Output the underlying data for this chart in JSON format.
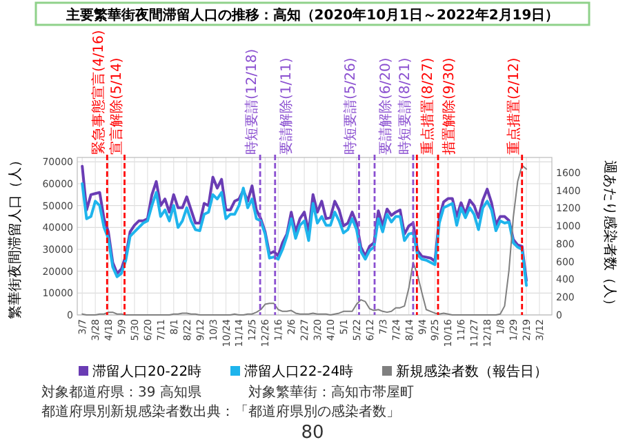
{
  "chart_data": {
    "type": "line",
    "title": "主要繁華街夜間滞留人口の推移：高知（2020年10月1日～2022年2月19日）",
    "ylabel": "繁華街夜間滞留人口（人）",
    "y2label": "週あたり感染者数（人）",
    "x": [
      "2020-03-07",
      "2020-03-14",
      "2020-03-21",
      "2020-03-28",
      "2020-04-04",
      "2020-04-11",
      "2020-04-18",
      "2020-04-25",
      "2020-05-02",
      "2020-05-09",
      "2020-05-16",
      "2020-05-23",
      "2020-05-30",
      "2020-06-06",
      "2020-06-13",
      "2020-06-20",
      "2020-06-27",
      "2020-07-04",
      "2020-07-11",
      "2020-07-18",
      "2020-07-25",
      "2020-08-01",
      "2020-08-08",
      "2020-08-15",
      "2020-08-22",
      "2020-08-29",
      "2020-09-05",
      "2020-09-12",
      "2020-09-19",
      "2020-09-26",
      "2020-10-03",
      "2020-10-10",
      "2020-10-17",
      "2020-10-24",
      "2020-10-31",
      "2020-11-07",
      "2020-11-14",
      "2020-11-21",
      "2020-11-28",
      "2020-12-05",
      "2020-12-12",
      "2020-12-19",
      "2020-12-26",
      "2021-01-02",
      "2021-01-09",
      "2021-01-16",
      "2021-01-23",
      "2021-01-30",
      "2021-02-06",
      "2021-02-13",
      "2021-02-20",
      "2021-02-27",
      "2021-03-06",
      "2021-03-13",
      "2021-03-20",
      "2021-03-27",
      "2021-04-03",
      "2021-04-10",
      "2021-04-17",
      "2021-04-24",
      "2021-05-01",
      "2021-05-08",
      "2021-05-15",
      "2021-05-22",
      "2021-05-29",
      "2021-06-05",
      "2021-06-12",
      "2021-06-19",
      "2021-06-26",
      "2021-07-03",
      "2021-07-10",
      "2021-07-17",
      "2021-07-24",
      "2021-07-31",
      "2021-08-07",
      "2021-08-14",
      "2021-08-21",
      "2021-08-28",
      "2021-09-04",
      "2021-09-11",
      "2021-09-18",
      "2021-09-25",
      "2021-10-02",
      "2021-10-09",
      "2021-10-16",
      "2021-10-23",
      "2021-10-30",
      "2021-11-06",
      "2021-11-13",
      "2021-11-20",
      "2021-11-27",
      "2021-12-04",
      "2021-12-11",
      "2021-12-18",
      "2021-12-25",
      "2022-01-01",
      "2022-01-08",
      "2022-01-15",
      "2022-01-22",
      "2022-01-29",
      "2022-02-05",
      "2022-02-12",
      "2022-02-19"
    ],
    "series": [
      {
        "name": "滞留人口20-22時",
        "color": "#6a3cb4",
        "values": [
          68000,
          48000,
          55000,
          55500,
          56000,
          44000,
          38000,
          24000,
          19000,
          21000,
          27000,
          38000,
          41000,
          43000,
          43000,
          44000,
          55000,
          61000,
          50000,
          53000,
          47000,
          55000,
          49000,
          49000,
          54000,
          48000,
          42000,
          42000,
          51000,
          50000,
          63000,
          58000,
          62000,
          48000,
          48000,
          52000,
          53000,
          57000,
          52000,
          59000,
          48000,
          44000,
          38000,
          28000,
          29000,
          27000,
          33000,
          37000,
          47000,
          38000,
          44000,
          47000,
          38000,
          55000,
          47000,
          52000,
          44000,
          44500,
          52000,
          48000,
          40700,
          42000,
          47000,
          42000,
          31000,
          27000,
          31400,
          33000,
          47600,
          40700,
          48400,
          45500,
          47000,
          48000,
          37000,
          40700,
          42000,
          29500,
          26800,
          26400,
          26000,
          24500,
          44500,
          51700,
          53200,
          53200,
          45000,
          51300,
          46300,
          52500,
          50000,
          44500,
          52500,
          57500,
          51300,
          41300,
          45000,
          45000,
          43200,
          34500,
          32000,
          31400,
          15800
        ]
      },
      {
        "name": "滞留人口22-24時",
        "color": "#1eb4ec",
        "values": [
          60000,
          44000,
          45000,
          52000,
          50000,
          40000,
          35000,
          22000,
          17500,
          19000,
          25000,
          36000,
          38000,
          40000,
          42000,
          43000,
          50000,
          56000,
          45000,
          48000,
          43000,
          50000,
          40000,
          43000,
          49000,
          43000,
          39000,
          38500,
          46000,
          47000,
          55000,
          53000,
          56000,
          44000,
          46000,
          46000,
          50000,
          58000,
          49000,
          53000,
          44000,
          43000,
          37000,
          26000,
          26500,
          25500,
          30000,
          36000,
          44000,
          35000,
          41000,
          43000,
          34000,
          51000,
          42000,
          45000,
          41000,
          41000,
          47000,
          43000,
          37500,
          39000,
          44000,
          39000,
          29000,
          25500,
          29500,
          31000,
          44000,
          38000,
          46000,
          42500,
          45000,
          45000,
          34000,
          37000,
          37500,
          27500,
          25500,
          25000,
          24000,
          23000,
          42000,
          49000,
          50000,
          51000,
          41000,
          49000,
          44500,
          49000,
          46000,
          39000,
          49000,
          52000,
          48000,
          38500,
          43000,
          42000,
          42500,
          33000,
          31000,
          30000,
          13500
        ]
      },
      {
        "name": "新規感染者数（報告日）",
        "color": "#7f7f7f",
        "axis": "y2",
        "values": [
          10,
          0,
          0,
          0,
          10,
          10,
          30,
          30,
          10,
          10,
          0,
          0,
          0,
          0,
          0,
          0,
          0,
          0,
          0,
          0,
          0,
          10,
          10,
          20,
          20,
          10,
          10,
          0,
          0,
          0,
          0,
          0,
          0,
          0,
          0,
          10,
          0,
          0,
          10,
          10,
          30,
          60,
          120,
          130,
          130,
          60,
          40,
          40,
          50,
          20,
          10,
          10,
          10,
          20,
          10,
          10,
          10,
          0,
          10,
          20,
          40,
          40,
          40,
          120,
          170,
          150,
          70,
          50,
          60,
          40,
          30,
          40,
          80,
          80,
          100,
          300,
          590,
          450,
          250,
          60,
          40,
          20,
          10,
          20,
          10,
          0,
          0,
          0,
          0,
          0,
          0,
          0,
          0,
          0,
          0,
          0,
          10,
          100,
          500,
          1100,
          1500,
          1680,
          1640
        ]
      }
    ],
    "xlim": [
      "2020-02-28",
      "2022-04-01"
    ],
    "xticks": [
      {
        "value": "2020-03-07",
        "label": "3/7"
      },
      {
        "value": "2020-03-28",
        "label": "3/28"
      },
      {
        "value": "2020-04-18",
        "label": "4/18"
      },
      {
        "value": "2020-05-09",
        "label": "5/9"
      },
      {
        "value": "2020-05-30",
        "label": "5/30"
      },
      {
        "value": "2020-06-20",
        "label": "6/20"
      },
      {
        "value": "2020-07-11",
        "label": "7/11"
      },
      {
        "value": "2020-08-01",
        "label": "8/1"
      },
      {
        "value": "2020-08-22",
        "label": "8/22"
      },
      {
        "value": "2020-09-12",
        "label": "9/12"
      },
      {
        "value": "2020-10-03",
        "label": "10/3"
      },
      {
        "value": "2020-10-24",
        "label": "10/24"
      },
      {
        "value": "2020-11-14",
        "label": "11/14"
      },
      {
        "value": "2020-12-05",
        "label": "12/5"
      },
      {
        "value": "2020-12-26",
        "label": "12/26"
      },
      {
        "value": "2021-01-16",
        "label": "1/16"
      },
      {
        "value": "2021-02-06",
        "label": "2/6"
      },
      {
        "value": "2021-02-27",
        "label": "2/27"
      },
      {
        "value": "2021-03-20",
        "label": "3/20"
      },
      {
        "value": "2021-04-10",
        "label": "4/10"
      },
      {
        "value": "2021-05-01",
        "label": "5/1"
      },
      {
        "value": "2021-05-22",
        "label": "5/22"
      },
      {
        "value": "2021-06-12",
        "label": "6/12"
      },
      {
        "value": "2021-07-03",
        "label": "7/3"
      },
      {
        "value": "2021-07-24",
        "label": "7/24"
      },
      {
        "value": "2021-08-14",
        "label": "8/14"
      },
      {
        "value": "2021-09-04",
        "label": "9/4"
      },
      {
        "value": "2021-09-25",
        "label": "9/25"
      },
      {
        "value": "2021-10-16",
        "label": "10/16"
      },
      {
        "value": "2021-11-06",
        "label": "11/6"
      },
      {
        "value": "2021-11-27",
        "label": "11/27"
      },
      {
        "value": "2021-12-18",
        "label": "12/18"
      },
      {
        "value": "2022-01-08",
        "label": "1/8"
      },
      {
        "value": "2022-01-29",
        "label": "1/29"
      },
      {
        "value": "2022-02-19",
        "label": "2/19"
      },
      {
        "value": "2022-03-12",
        "label": "3/12"
      }
    ],
    "ylim": [
      0,
      72000
    ],
    "yticks": [
      0,
      10000,
      20000,
      30000,
      40000,
      50000,
      60000,
      70000
    ],
    "y2lim": [
      0,
      1770
    ],
    "y2ticks": [
      0,
      200,
      400,
      600,
      800,
      1000,
      1200,
      1400,
      1600
    ],
    "ref_lines": [
      {
        "axis": "x",
        "value": "2020-04-16",
        "label": "緊急事態宣言(4/16)",
        "color": "#ff0000",
        "line_style": "dashed"
      },
      {
        "axis": "x",
        "value": "2020-05-14",
        "label": "宣言解除(5/14)",
        "color": "#ff0000",
        "line_style": "dashed"
      },
      {
        "axis": "x",
        "value": "2020-12-18",
        "label": "時短要請(12/18)",
        "color": "#8a4fd0",
        "line_style": "dashed"
      },
      {
        "axis": "x",
        "value": "2021-01-11",
        "label": "要請解除(1/11)",
        "color": "#8a4fd0",
        "line_style": "dashed"
      },
      {
        "axis": "x",
        "value": "2021-05-26",
        "label": "時短要請(5/26)",
        "color": "#8a4fd0",
        "line_style": "dashed"
      },
      {
        "axis": "x",
        "value": "2021-06-20",
        "label": "要請解除(6/20)",
        "color": "#8a4fd0",
        "line_style": "dashed"
      },
      {
        "axis": "x",
        "value": "2021-08-21",
        "label": "時短要請(8/21)",
        "color": "#8a4fd0",
        "line_style": "dashed"
      },
      {
        "axis": "x",
        "value": "2021-08-27",
        "label": "重点措置(8/27)",
        "color": "#ff0000",
        "line_style": "dashed"
      },
      {
        "axis": "x",
        "value": "2021-09-30",
        "label": "措置解除(9/30)",
        "color": "#ff0000",
        "line_style": "dashed"
      },
      {
        "axis": "x",
        "value": "2022-02-12",
        "label": "重点措置(2/12)",
        "color": "#ff0000",
        "line_style": "dashed"
      }
    ],
    "annotations": [
      "対象都道府県：39 高知県",
      "対象繁華街：高知市帯屋町",
      "都道府県別新規感染者数出典：「都道府県別の感染者数」",
      "80"
    ],
    "grid": true,
    "legend": "bottom"
  }
}
